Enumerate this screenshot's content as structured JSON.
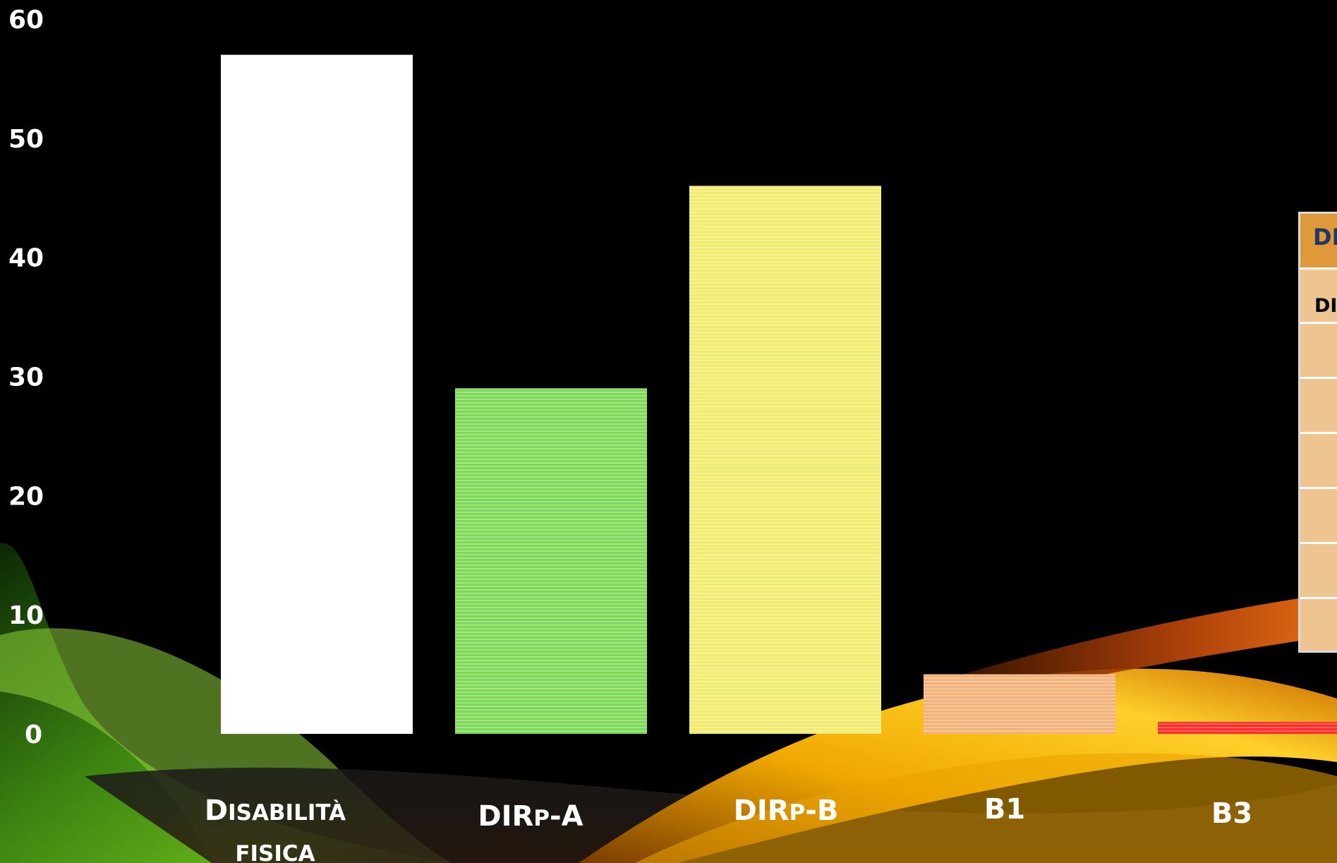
{
  "chart_data": {
    "type": "bar",
    "categories": [
      "DISABILITÀ FISICA",
      "DIRP-A",
      "DIRP-B",
      "B1",
      "B3"
    ],
    "category_display": [
      {
        "line1": "D",
        "line1_small": "ISABILITÀ",
        "line2": "FISICA"
      },
      {
        "line1": "DIR",
        "line1_small": "P",
        "line1_tail": "-A"
      },
      {
        "line1": "DIR",
        "line1_small": "P",
        "line1_tail": "-B"
      },
      {
        "line1": "B1"
      },
      {
        "line1": "B3"
      }
    ],
    "values": [
      57,
      29,
      46,
      5,
      1
    ],
    "colors": [
      "#ffffff",
      "#7ed957",
      "#f2ec6e",
      "#f2b27a",
      "#ff2a2a"
    ],
    "ylim": [
      0,
      60
    ],
    "yticks": [
      "0",
      "10",
      "20",
      "30",
      "40",
      "50",
      "60"
    ],
    "title": "",
    "xlabel": "",
    "ylabel": "",
    "grid": false,
    "legend": "none"
  },
  "side_table": {
    "header": "DI",
    "first_row": "DI"
  }
}
